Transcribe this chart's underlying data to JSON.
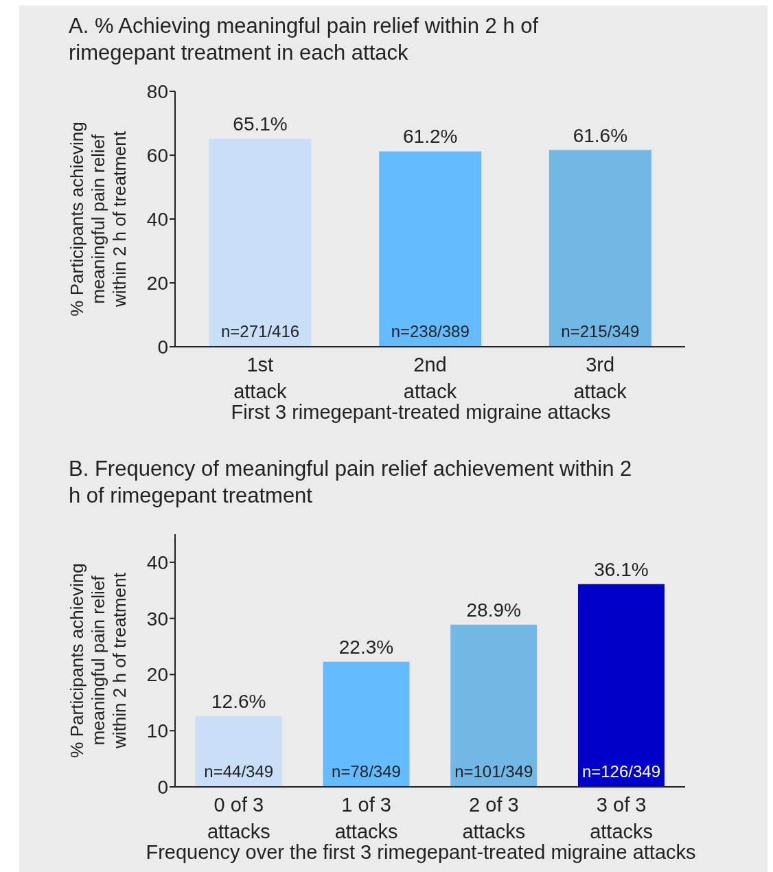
{
  "chart_data": [
    {
      "type": "bar",
      "title": "A. % Achieving meaningful pain relief within 2 h of rimegepant treatment in each attack",
      "xlabel": "First 3 rimegepant-treated migraine attacks",
      "ylabel": "% Participants achieving meaningful pain relief within 2 h of treatment",
      "categories": [
        "1st attack",
        "2nd attack",
        "3rd attack"
      ],
      "values": [
        65.1,
        61.2,
        61.6
      ],
      "colors": [
        "#c9def7",
        "#64bcff",
        "#72b8e6"
      ],
      "value_labels": [
        "65.1%",
        "61.2%",
        "61.6%"
      ],
      "ylim": [
        0,
        80
      ],
      "yticks": [
        0,
        20,
        40,
        60,
        80
      ],
      "annotations": [
        "n=271/416",
        "n=238/389",
        "n=215/349"
      ]
    },
    {
      "type": "bar",
      "title": "B. Frequency of meaningful pain relief achievement within 2 h of rimegepant treatment",
      "xlabel": "Frequency over the first 3 rimegepant-treated migraine attacks",
      "ylabel": "% Participants achieving meaningful pain relief within 2 h of treatment",
      "categories": [
        "0 of 3 attacks",
        "1 of 3 attacks",
        "2 of 3 attacks",
        "3 of 3 attacks"
      ],
      "values": [
        12.6,
        22.3,
        28.9,
        36.1
      ],
      "colors": [
        "#c9def7",
        "#64bcff",
        "#72b8e6",
        "#0000c8"
      ],
      "value_labels": [
        "12.6%",
        "22.3%",
        "28.9%",
        "36.1%"
      ],
      "ylim": [
        0,
        45
      ],
      "yticks": [
        0,
        10,
        20,
        30,
        40
      ],
      "annotations": [
        "n=44/349",
        "n=78/349",
        "n=101/349",
        "n=126/349"
      ]
    }
  ]
}
